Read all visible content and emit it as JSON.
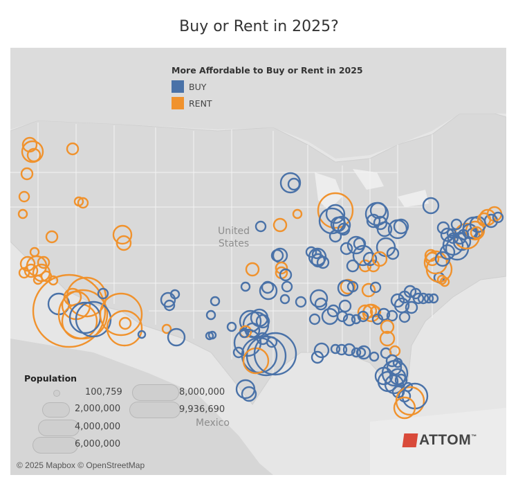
{
  "title": "Buy or Rent in 2025?",
  "legend": {
    "title": "More Affordable to Buy or Rent in 2025",
    "items": [
      {
        "label": "BUY",
        "color": "#4a72a8"
      },
      {
        "label": "RENT",
        "color": "#f0922d"
      }
    ]
  },
  "map_labels": {
    "united_states": "United\nStates",
    "mexico": "Mexico"
  },
  "population_legend": {
    "title": "Population",
    "values": [
      "100,759",
      "2,000,000",
      "4,000,000",
      "6,000,000",
      "8,000,000",
      "9,936,690"
    ]
  },
  "attribution": "© 2025 Mapbox © OpenStreetMap",
  "logo_text": "ATTOM",
  "logo_mark": "™",
  "colors": {
    "buy": "#4a72a8",
    "rent": "#f0922d",
    "map_bg": "#e4e4e4",
    "land": "#d9d9d9"
  }
}
